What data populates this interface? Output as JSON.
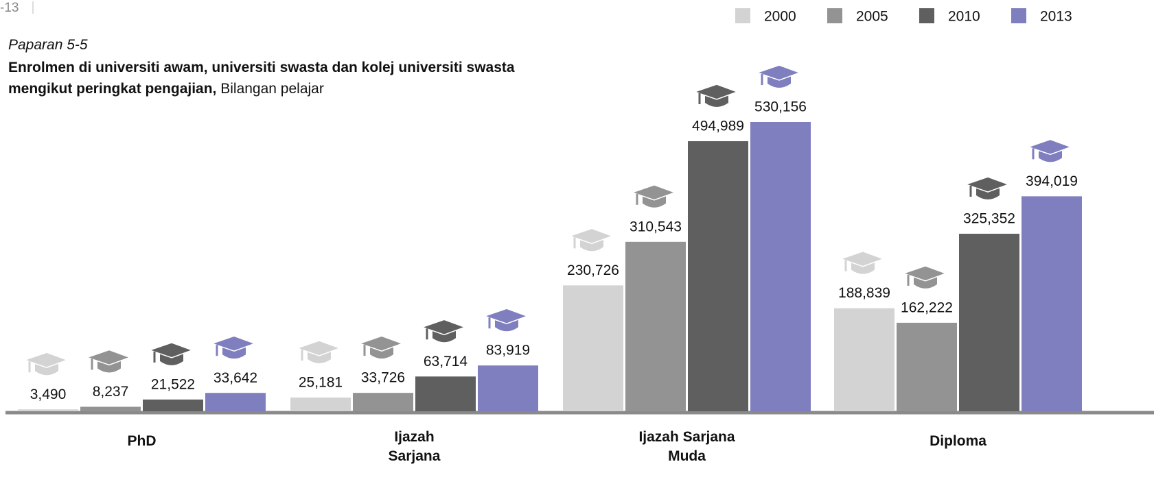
{
  "page_label": "-13",
  "chart_data": {
    "type": "bar",
    "kicker": "Paparan 5-5",
    "title": "Enrolmen  di universiti awam, universiti swasta dan kolej universiti swasta mengikut peringkat pengajian,",
    "subtitle": "Bilangan pelajar",
    "categories": [
      "PhD",
      "Ijazah Sarjana",
      "Ijazah Sarjana Muda",
      "Diploma"
    ],
    "legend": "top-right",
    "series": [
      {
        "name": "2000",
        "color": "#d3d3d3",
        "values": [
          3490,
          25181,
          230726,
          188839
        ],
        "value_labels": [
          "3,490",
          "25,181",
          "230,726",
          "188,839"
        ]
      },
      {
        "name": "2005",
        "color": "#939393",
        "values": [
          8237,
          33726,
          310543,
          162222
        ],
        "value_labels": [
          "8,237",
          "33,726",
          "310,543",
          "162,222"
        ]
      },
      {
        "name": "2010",
        "color": "#5f5f5f",
        "values": [
          21522,
          63714,
          494989,
          325352
        ],
        "value_labels": [
          "21,522",
          "63,714",
          "494,989",
          "325,352"
        ]
      },
      {
        "name": "2013",
        "color": "#7f7fbf",
        "values": [
          33642,
          83919,
          530156,
          394019
        ],
        "value_labels": [
          "33,642",
          "83,919",
          "530,156",
          "394,019"
        ]
      }
    ]
  }
}
